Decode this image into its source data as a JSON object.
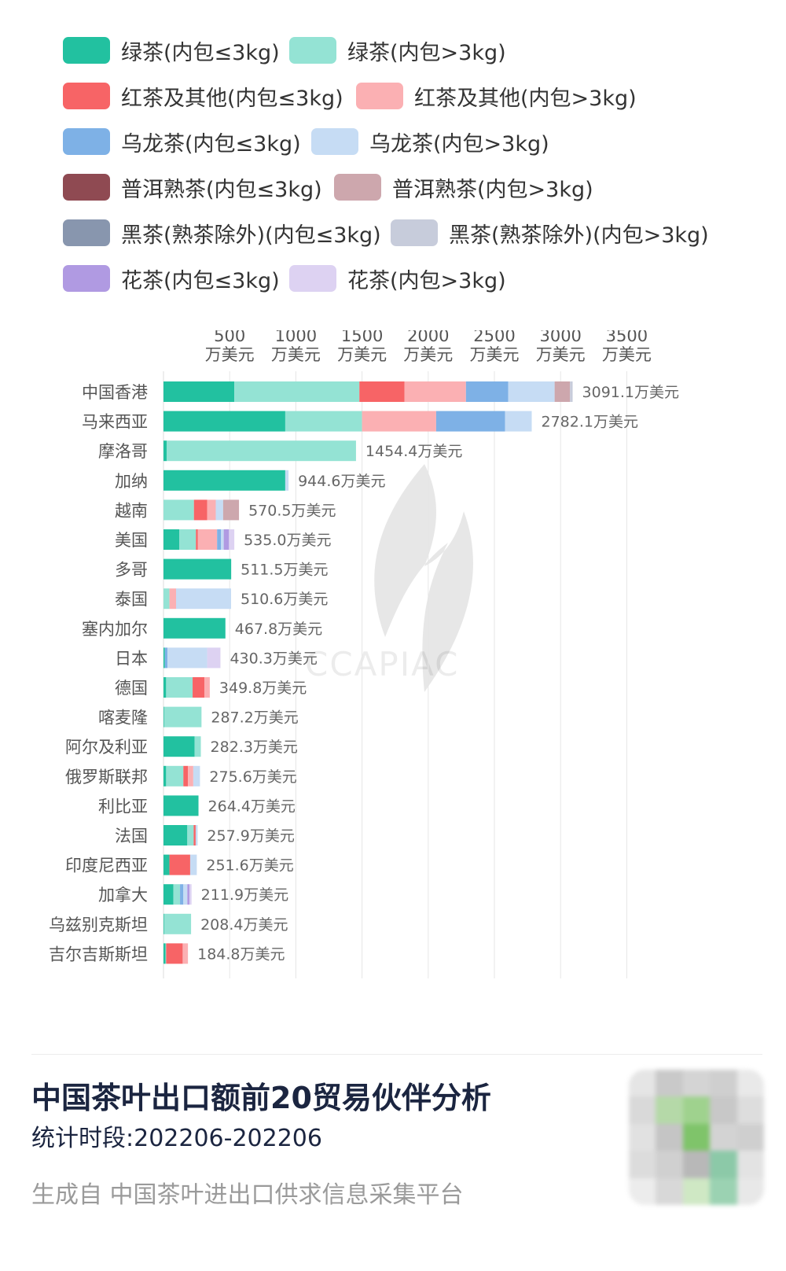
{
  "legend": [
    [
      {
        "label": "绿茶(内包≤3kg)",
        "color": "#22c1a0"
      },
      {
        "label": "绿茶(内包>3kg)",
        "color": "#94e3d4"
      }
    ],
    [
      {
        "label": "红茶及其他(内包≤3kg)",
        "color": "#f76466"
      },
      {
        "label": "红茶及其他(内包>3kg)",
        "color": "#fbb0b3"
      }
    ],
    [
      {
        "label": "乌龙茶(内包≤3kg)",
        "color": "#7eb1e6"
      },
      {
        "label": "乌龙茶(内包>3kg)",
        "color": "#c6dcf4"
      }
    ],
    [
      {
        "label": "普洱熟茶(内包≤3kg)",
        "color": "#8f4a52"
      },
      {
        "label": "普洱熟茶(内包>3kg)",
        "color": "#cda7ad"
      }
    ],
    [
      {
        "label": "黑茶(熟茶除外)(内包≤3kg)",
        "color": "#8896ae"
      },
      {
        "label": "黑茶(熟茶除外)(内包>3kg)",
        "color": "#c7ccdb"
      }
    ],
    [
      {
        "label": "花茶(内包≤3kg)",
        "color": "#b09ae2"
      },
      {
        "label": "花茶(内包>3kg)",
        "color": "#ddd2f2"
      }
    ]
  ],
  "chart_data": {
    "type": "bar",
    "orientation": "horizontal",
    "stacked": true,
    "xlim": [
      0,
      3500
    ],
    "x_ticks": [
      500,
      1000,
      1500,
      2000,
      2500,
      3000,
      3500
    ],
    "x_tick_unit": "万美元",
    "value_suffix": "万美元",
    "grid": true,
    "legend_position": "top",
    "categories": [
      "中国香港",
      "马来西亚",
      "摩洛哥",
      "加纳",
      "越南",
      "美国",
      "多哥",
      "泰国",
      "塞内加尔",
      "日本",
      "德国",
      "喀麦隆",
      "阿尔及利亚",
      "俄罗斯联邦",
      "利比亚",
      "法国",
      "印度尼西亚",
      "加拿大",
      "乌兹别克斯坦",
      "吉尔吉斯斯坦"
    ],
    "totals": [
      "3091.1",
      "2782.1",
      "1454.4",
      "944.6",
      "570.5",
      "535.0",
      "511.5",
      "510.6",
      "467.8",
      "430.3",
      "349.8",
      "287.2",
      "282.3",
      "275.6",
      "264.4",
      "257.9",
      "251.6",
      "211.9",
      "208.4",
      "184.8"
    ],
    "series": [
      {
        "name": "绿茶(内包≤3kg)",
        "color": "#22c1a0",
        "values": [
          535,
          920,
          25,
          920,
          0,
          120,
          511.5,
          0,
          467.8,
          10,
          20,
          5,
          235,
          20,
          264.4,
          180,
          45,
          75,
          5,
          15
        ]
      },
      {
        "name": "绿茶(内包>3kg)",
        "color": "#94e3d4",
        "values": [
          945,
          580,
          1429.4,
          0,
          230,
          125,
          0,
          45,
          0,
          0,
          200,
          282.2,
          47.3,
          130,
          0,
          48,
          0,
          50,
          203.4,
          5
        ]
      },
      {
        "name": "红茶及其他(内包≤3kg)",
        "color": "#f76466",
        "values": [
          340,
          0,
          0,
          0,
          100,
          15,
          0,
          0,
          0,
          0,
          90,
          0,
          0,
          35,
          0,
          15,
          156.6,
          0,
          0,
          125
        ]
      },
      {
        "name": "红茶及其他(内包>3kg)",
        "color": "#fbb0b3",
        "values": [
          465,
          560,
          0,
          0,
          65,
          145,
          0,
          50,
          0,
          0,
          39.8,
          0,
          0,
          40,
          0,
          0,
          0,
          0,
          0,
          39.8
        ]
      },
      {
        "name": "乌龙茶(内包≤3kg)",
        "color": "#7eb1e6",
        "values": [
          320,
          520,
          0,
          0,
          0,
          30,
          0,
          0,
          0,
          20,
          0,
          0,
          0,
          0,
          0,
          0,
          0,
          25,
          0,
          0
        ]
      },
      {
        "name": "乌龙茶(内包>3kg)",
        "color": "#c6dcf4",
        "values": [
          350,
          202.1,
          0,
          24.6,
          55.5,
          20,
          0,
          415.6,
          0,
          300,
          0,
          0,
          0,
          50.6,
          0,
          14.9,
          50,
          30,
          0,
          0
        ]
      },
      {
        "name": "普洱熟茶(内包≤3kg)",
        "color": "#8f4a52",
        "values": [
          0,
          0,
          0,
          0,
          0,
          0,
          0,
          0,
          0,
          0,
          0,
          0,
          0,
          0,
          0,
          0,
          0,
          0,
          0,
          0
        ]
      },
      {
        "name": "普洱熟茶(内包>3kg)",
        "color": "#cda7ad",
        "values": [
          116.1,
          0,
          0,
          0,
          120,
          0,
          0,
          0,
          0,
          0,
          0,
          0,
          0,
          0,
          0,
          0,
          0,
          0,
          0,
          0
        ]
      },
      {
        "name": "黑茶(熟茶除外)(内包≤3kg)",
        "color": "#8896ae",
        "values": [
          0,
          0,
          0,
          0,
          0,
          0,
          0,
          0,
          0,
          0,
          0,
          0,
          0,
          0,
          0,
          0,
          0,
          0,
          0,
          0
        ]
      },
      {
        "name": "黑茶(熟茶除外)(内包>3kg)",
        "color": "#c7ccdb",
        "values": [
          20,
          0,
          0,
          0,
          0,
          0,
          0,
          0,
          0,
          0,
          0,
          0,
          0,
          0,
          0,
          0,
          0,
          0,
          0,
          0
        ]
      },
      {
        "name": "花茶(内包≤3kg)",
        "color": "#b09ae2",
        "values": [
          0,
          0,
          0,
          0,
          0,
          40,
          0,
          0,
          0,
          0,
          0,
          0,
          0,
          0,
          0,
          0,
          0,
          16.9,
          0,
          0
        ]
      },
      {
        "name": "花茶(内包>3kg)",
        "color": "#ddd2f2",
        "values": [
          0,
          0,
          0,
          0,
          0,
          40,
          0,
          0,
          0,
          100.3,
          0,
          0,
          0,
          0,
          0,
          0,
          0,
          15,
          0,
          0
        ]
      }
    ]
  },
  "title": "中国茶叶出口额前20贸易伙伴分析",
  "subtitle": "统计时段:202206-202206",
  "source": "生成自 中国茶叶进出口供求信息采集平台",
  "watermark": "CCAPIAC",
  "qr_colors": [
    "#e5e5e5",
    "#c9c9c9",
    "#d4d4d4",
    "#cfcfcf",
    "#e9e9e9",
    "#d9d9d9",
    "#b5d9a8",
    "#9fd28e",
    "#c8c8c8",
    "#dddddd",
    "#e1e1e1",
    "#c5c5c5",
    "#7fc46a",
    "#d3d3d3",
    "#cfcfcf",
    "#dcdcdc",
    "#d0d0d0",
    "#b8b8b8",
    "#8cc9a8",
    "#e3e3e3",
    "#ececec",
    "#d8d8d8",
    "#cfe8c4",
    "#9bd2b2",
    "#e8e8e8"
  ]
}
